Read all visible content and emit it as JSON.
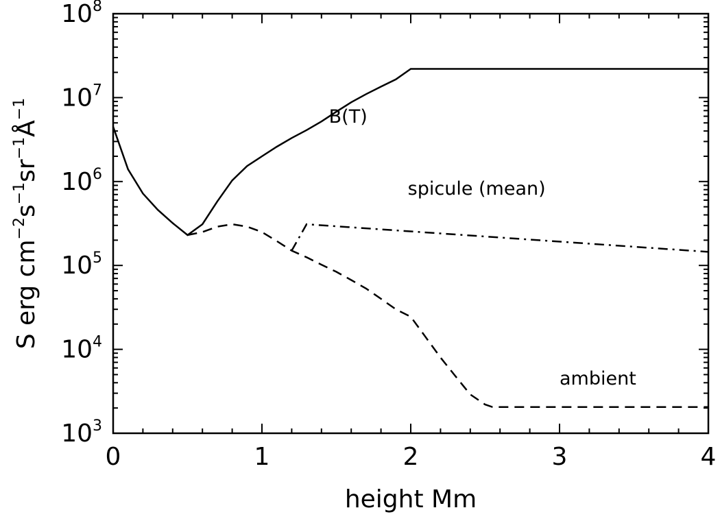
{
  "chart_data": {
    "type": "line",
    "xlabel": "height Mm",
    "ylabel": {
      "parts": [
        {
          "text": "S erg cm",
          "sup": false
        },
        {
          "text": "−2",
          "sup": true
        },
        {
          "text": "s",
          "sup": false
        },
        {
          "text": "−1",
          "sup": true
        },
        {
          "text": "sr",
          "sup": false
        },
        {
          "text": "−1",
          "sup": true
        },
        {
          "text": "Å",
          "sup": false
        },
        {
          "text": "−1",
          "sup": true
        }
      ]
    },
    "xlim": [
      0,
      4
    ],
    "ylim": [
      1000,
      100000000
    ],
    "y_scale": "log",
    "x_ticks": [
      {
        "value": 0,
        "label": "0"
      },
      {
        "value": 1,
        "label": "1"
      },
      {
        "value": 2,
        "label": "2"
      },
      {
        "value": 3,
        "label": "3"
      },
      {
        "value": 4,
        "label": "4"
      }
    ],
    "y_ticks": [
      {
        "value": 1000,
        "base": "10",
        "exp": "3"
      },
      {
        "value": 10000,
        "base": "10",
        "exp": "4"
      },
      {
        "value": 100000,
        "base": "10",
        "exp": "5"
      },
      {
        "value": 1000000,
        "base": "10",
        "exp": "6"
      },
      {
        "value": 10000000,
        "base": "10",
        "exp": "7"
      },
      {
        "value": 100000000,
        "base": "10",
        "exp": "8"
      }
    ],
    "grid": false,
    "series": [
      {
        "name": "B(T)",
        "style": "solid",
        "x": [
          0,
          0.1,
          0.2,
          0.3,
          0.4,
          0.5,
          0.6,
          0.7,
          0.8,
          0.9,
          1.0,
          1.1,
          1.2,
          1.3,
          1.4,
          1.5,
          1.6,
          1.7,
          1.8,
          1.9,
          2.0,
          4.0
        ],
        "y": [
          4500000,
          1400000,
          720000,
          460000,
          320000,
          230000,
          310000,
          580000,
          1030000,
          1530000,
          2000000,
          2600000,
          3300000,
          4100000,
          5200000,
          6800000,
          8800000,
          11000000,
          13500000,
          16500000,
          22000000,
          22000000
        ]
      },
      {
        "name": "ambient",
        "style": "dashed",
        "x": [
          0.5,
          0.6,
          0.7,
          0.8,
          0.9,
          1.0,
          1.1,
          1.2,
          1.3,
          1.4,
          1.5,
          1.6,
          1.7,
          1.8,
          1.9,
          2.0,
          2.1,
          2.2,
          2.3,
          2.4,
          2.5,
          2.55,
          4.0
        ],
        "y": [
          230000,
          250000,
          290000,
          310000,
          290000,
          250000,
          195000,
          150000,
          125000,
          102000,
          84000,
          67000,
          53000,
          40000,
          30000,
          24500,
          14000,
          8000,
          4800,
          2900,
          2200,
          2050,
          2050
        ]
      },
      {
        "name": "spicule (mean)",
        "style": "dashdot",
        "x": [
          1.2,
          1.3,
          4.0
        ],
        "y": [
          150000,
          310000,
          145000
        ]
      }
    ],
    "annotations": [
      {
        "text": "B(T)",
        "x": 1.45,
        "y": 5000000
      },
      {
        "text": "spicule (mean)",
        "x": 1.98,
        "y": 700000
      },
      {
        "text": "ambient",
        "x": 3.0,
        "y": 3800
      }
    ]
  }
}
